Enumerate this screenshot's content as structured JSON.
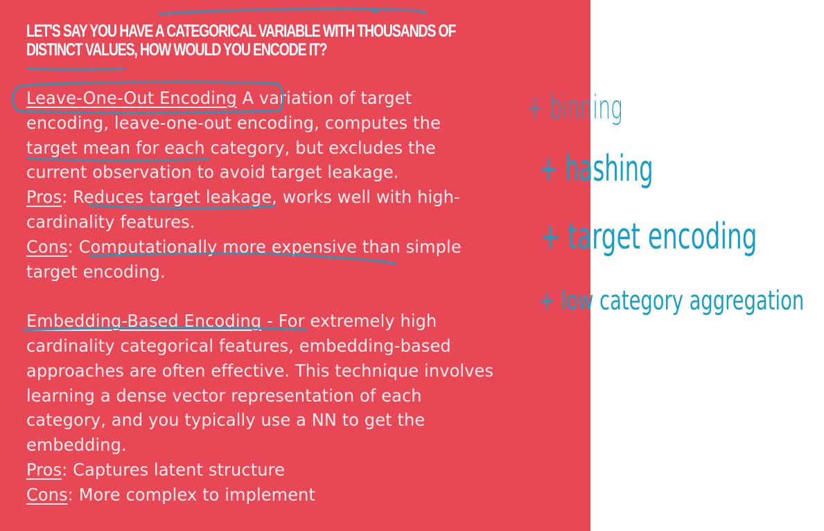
{
  "slide": {
    "title_lines": [
      "LET'S SAY YOU HAVE A CATEGORICAL VARIABLE WITH THOUSANDS OF",
      "DISTINCT VALUES, HOW WOULD YOU ENCODE IT?"
    ],
    "section1": {
      "heading": "Leave-One-Out Encoding",
      "line1_rest": " A variation of target",
      "line2": "encoding, leave-one-out encoding, computes the",
      "line3": "target mean for each category, but excludes the",
      "line4": "current observation to avoid target leakage.",
      "pros_label": "Pros",
      "pros_line1": ": Reduces target leakage, works well with high-",
      "pros_line2": "cardinality features.",
      "cons_label": "Cons",
      "cons_line1": ": Computationally more expensive than simple",
      "cons_line2": "target encoding."
    },
    "section2": {
      "heading": "Embedding-Based Encoding",
      "line1_rest": " - For extremely high",
      "line2": "cardinality categorical features, embedding-based",
      "line3": "approaches are often effective. This technique involves",
      "line4": "learning a dense vector representation of each",
      "line5": "category, and you typically use a NN to get the",
      "line6": "embedding.",
      "pros_label": "Pros",
      "pros_text": ": Captures latent structure",
      "cons_label": "Cons",
      "cons_text": ": More complex to implement"
    }
  },
  "handwritten_notes": [
    "+ binning",
    "+ hashing",
    "+ target encoding",
    "+ low category aggregation"
  ],
  "colors": {
    "slide_background": "#e84756",
    "ink": "#1a9fc4",
    "page_background": "#ffffff"
  }
}
